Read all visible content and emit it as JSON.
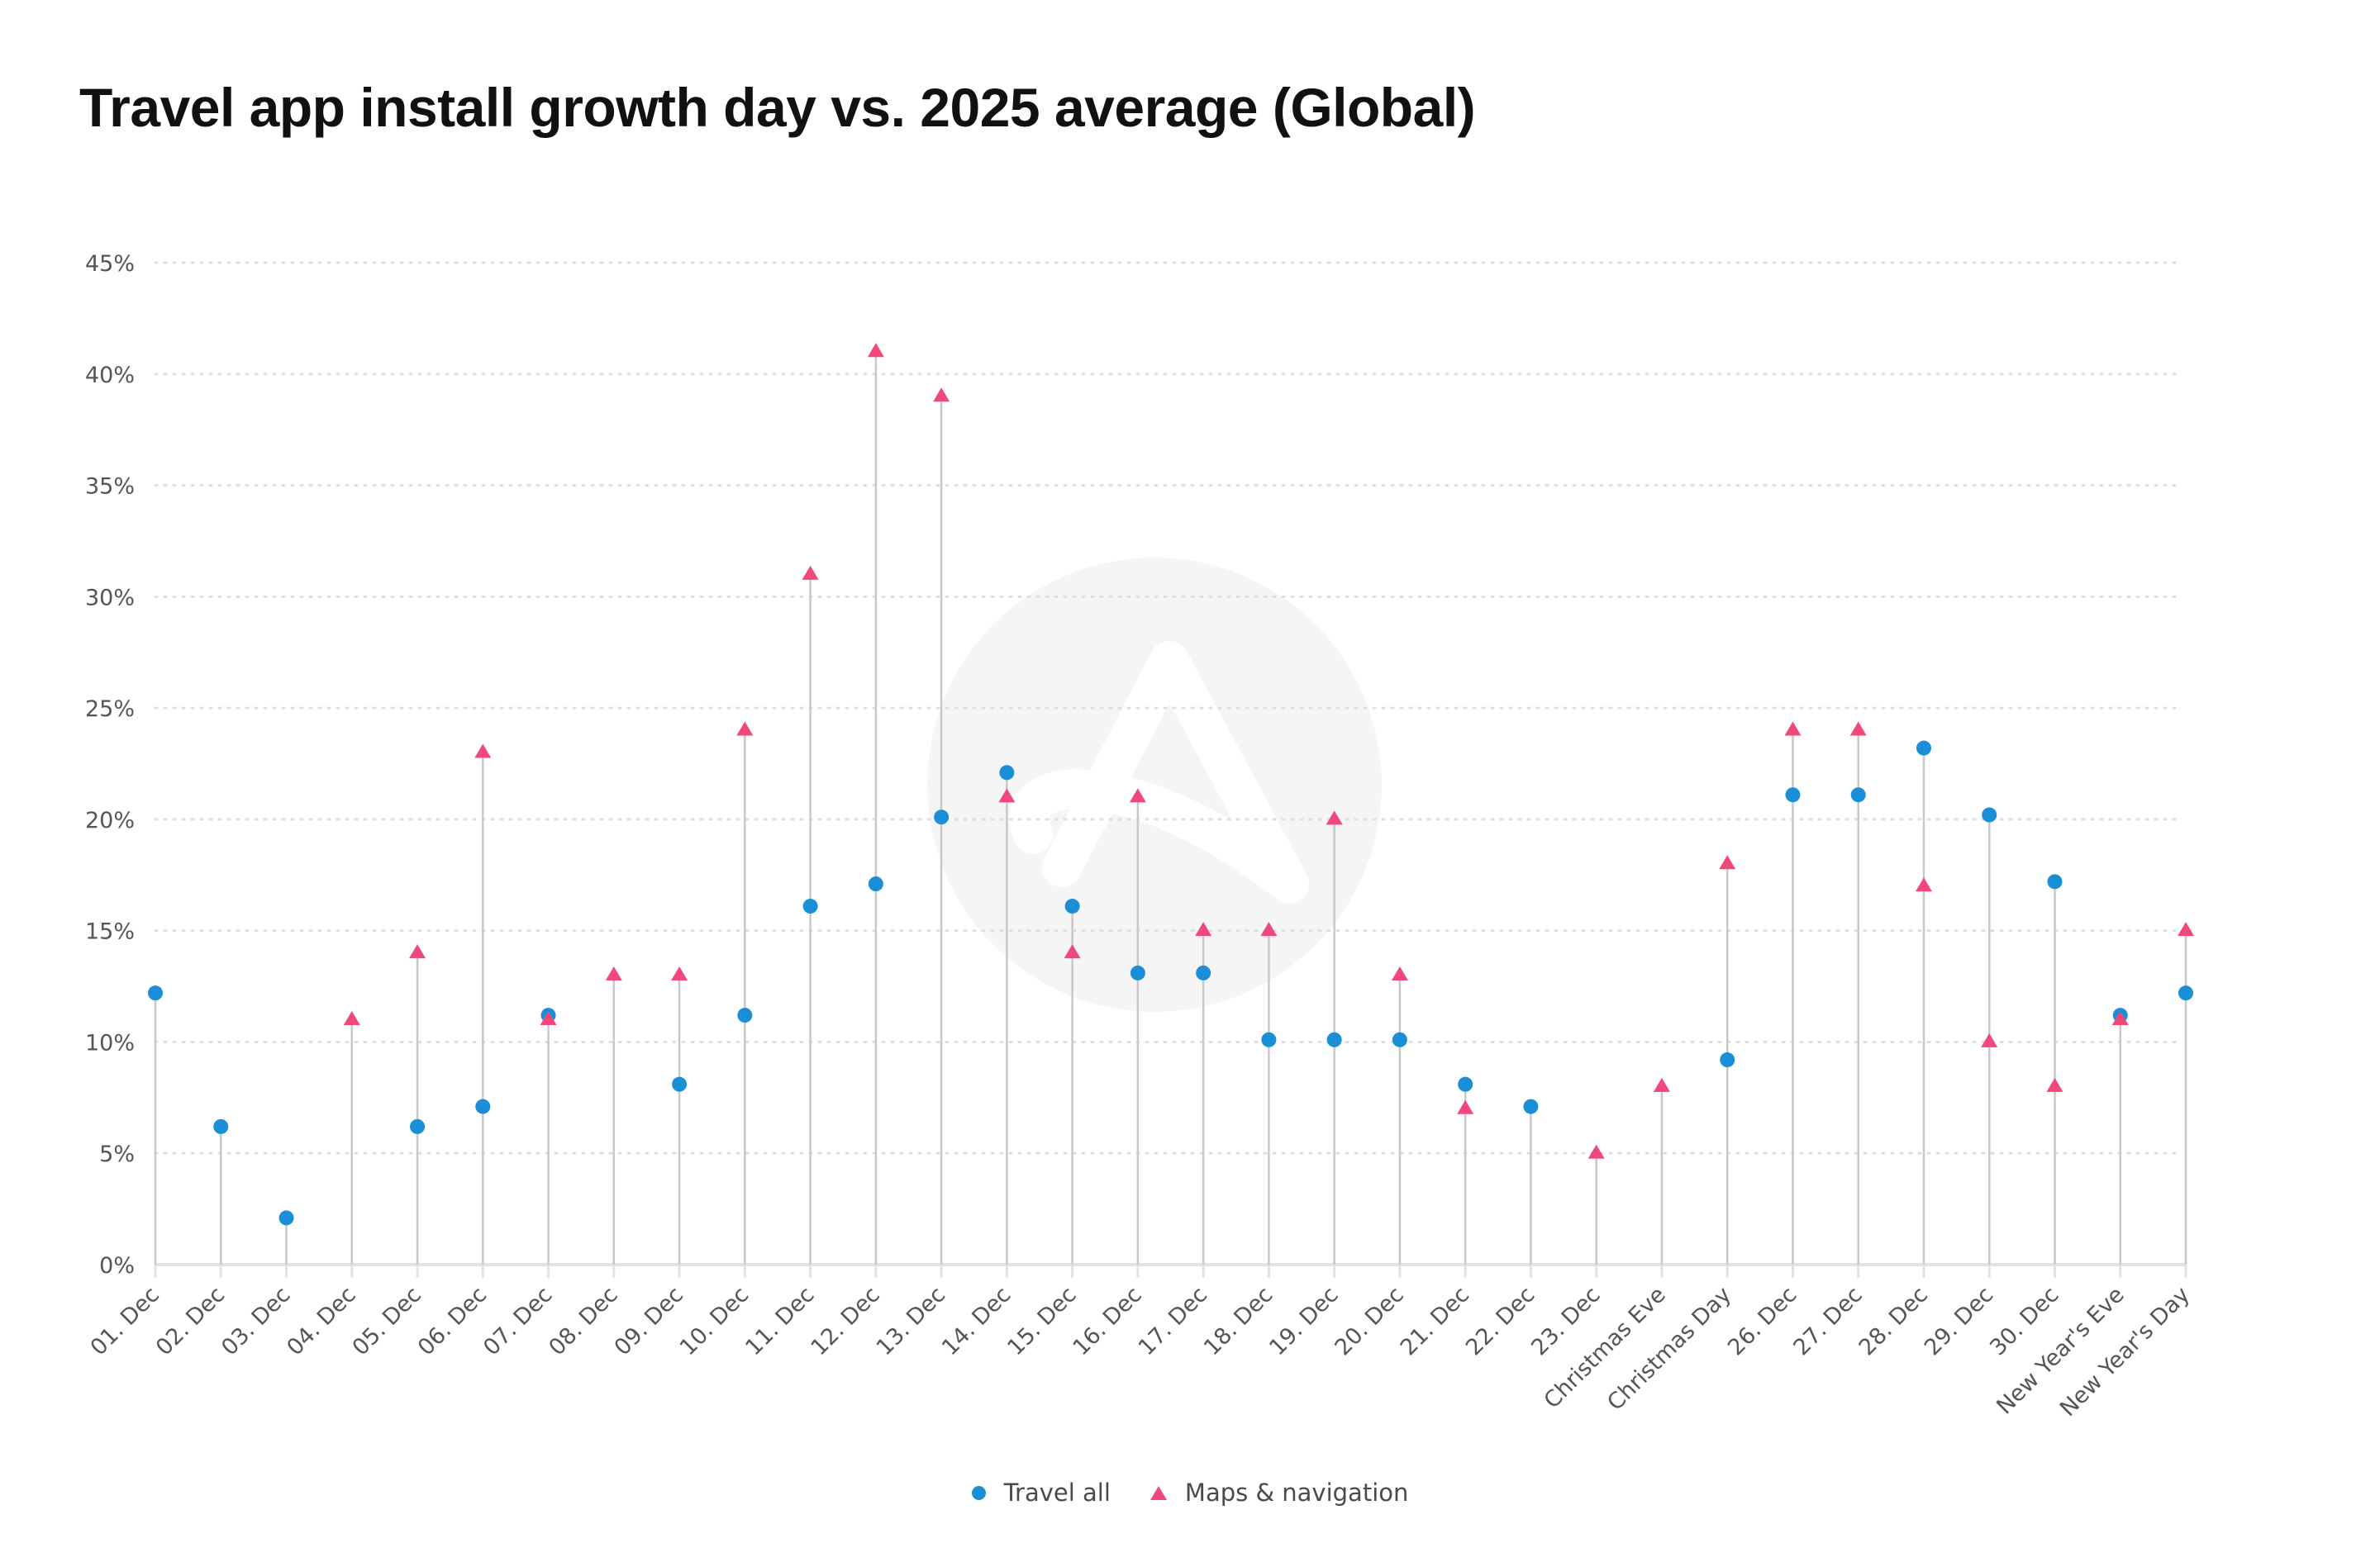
{
  "chart_data": {
    "type": "lollipop-scatter",
    "title": "Travel app install growth day vs. 2025 average (Global)",
    "xlabel": "",
    "ylabel": "",
    "ylim": [
      0,
      45
    ],
    "yticks": [
      0,
      5,
      10,
      15,
      20,
      25,
      30,
      35,
      40,
      45
    ],
    "ytick_labels": [
      "0%",
      "5%",
      "10%",
      "15%",
      "20%",
      "25%",
      "30%",
      "35%",
      "40%",
      "45%"
    ],
    "grid": "horizontal-dotted",
    "legend_position": "bottom-center",
    "categories": [
      "01. Dec",
      "02. Dec",
      "03. Dec",
      "04. Dec",
      "05. Dec",
      "06. Dec",
      "07. Dec",
      "08. Dec",
      "09. Dec",
      "10. Dec",
      "11. Dec",
      "12. Dec",
      "13. Dec",
      "14. Dec",
      "15. Dec",
      "16. Dec",
      "17. Dec",
      "18. Dec",
      "19. Dec",
      "20. Dec",
      "21. Dec",
      "22. Dec",
      "23. Dec",
      "Christmas Eve",
      "Christmas Day",
      "26. Dec",
      "27. Dec",
      "28. Dec",
      "29. Dec",
      "30. Dec",
      "New Year's Eve",
      "New Year's Day"
    ],
    "series": [
      {
        "name": "Travel all",
        "marker": "circle",
        "color": "#1a8fd8",
        "values": [
          12.2,
          6.2,
          2.1,
          null,
          6.2,
          7.1,
          11.2,
          null,
          8.1,
          11.2,
          16.1,
          17.1,
          20.1,
          22.1,
          16.1,
          13.1,
          13.1,
          10.1,
          10.1,
          10.1,
          8.1,
          7.1,
          null,
          null,
          9.2,
          21.1,
          21.1,
          23.2,
          20.2,
          17.2,
          11.2,
          12.2
        ]
      },
      {
        "name": "Maps & navigation",
        "marker": "triangle",
        "color": "#f0487a",
        "values": [
          null,
          null,
          null,
          11,
          14,
          23,
          11,
          13,
          13,
          24,
          31,
          41,
          39,
          21,
          14,
          21,
          15,
          15,
          20,
          13,
          7,
          null,
          5,
          8,
          18,
          24,
          24,
          17,
          10,
          8,
          11,
          15
        ]
      }
    ]
  },
  "legend": {
    "items": [
      {
        "label": "Travel all",
        "marker": "circle",
        "color": "#1a8fd8"
      },
      {
        "label": "Maps & navigation",
        "marker": "triangle",
        "color": "#f0487a"
      }
    ]
  },
  "watermark": {
    "icon": "brand-logo-watermark"
  },
  "colors": {
    "grid": "#dcdde6",
    "stem": "#c8c8cc",
    "axis": "#e2e3ea",
    "text": "#555555",
    "title": "#111111",
    "watermark": "#f5f5f5"
  }
}
